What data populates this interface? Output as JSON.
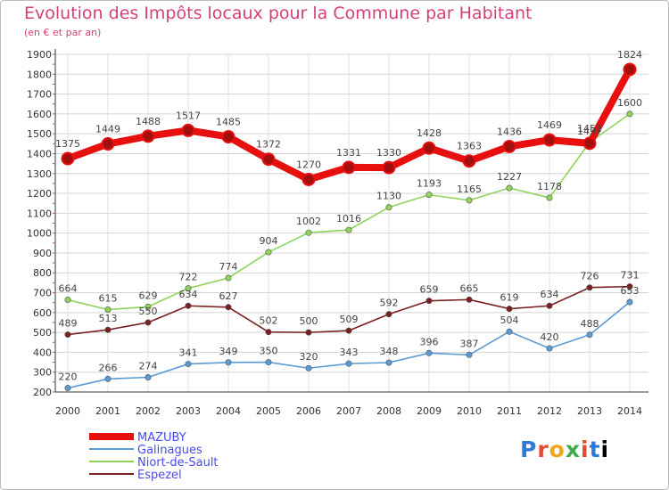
{
  "chart_data": {
    "type": "line",
    "title": "Evolution des Impôts locaux pour la Commune par Habitant",
    "subtitle": "(en € et par an)",
    "logo_text": "Proxiti",
    "x": [
      "2000",
      "2001",
      "2002",
      "2003",
      "2004",
      "2005",
      "2006",
      "2007",
      "2008",
      "2009",
      "2010",
      "2011",
      "2012",
      "2013",
      "2014"
    ],
    "ylim": [
      200,
      1900
    ],
    "yticks": [
      200,
      300,
      400,
      500,
      600,
      700,
      800,
      900,
      1000,
      1100,
      1200,
      1300,
      1400,
      1500,
      1600,
      1700,
      1800,
      1900
    ],
    "grid": true,
    "legend_position": "bottom-left",
    "series": [
      {
        "name": "MAZUBY",
        "color": "#e8100f",
        "values": [
          1375,
          1449,
          1488,
          1517,
          1485,
          1372,
          1270,
          1331,
          1330,
          1428,
          1363,
          1436,
          1469,
          1452,
          1824
        ],
        "labels": [
          "1375",
          "1449",
          "1488",
          "1517",
          "1485",
          "1372",
          "1270",
          "1331",
          "1330",
          "1428",
          "1363",
          "1436",
          "1469",
          "1452",
          "1824"
        ]
      },
      {
        "name": "Galinagues",
        "color": "#5a9bd5",
        "values": [
          220,
          266,
          274,
          341,
          349,
          350,
          320,
          343,
          348,
          396,
          387,
          504,
          420,
          488,
          653
        ],
        "labels": [
          "220",
          "266",
          "274",
          "341",
          "349",
          "350",
          "320",
          "343",
          "348",
          "396",
          "387",
          "504",
          "420",
          "488",
          "653"
        ]
      },
      {
        "name": "Niort-de-Sault",
        "color": "#8fd45a",
        "values": [
          664,
          615,
          629,
          722,
          774,
          904,
          1002,
          1016,
          1130,
          1193,
          1165,
          1227,
          1178,
          1457,
          1600
        ],
        "labels": [
          "664",
          "615",
          "629",
          "722",
          "774",
          "904",
          "1002",
          "1016",
          "1130",
          "1193",
          "1165",
          "1227",
          "1178",
          "1457",
          "1600"
        ]
      },
      {
        "name": "Espezel",
        "color": "#7b2020",
        "values": [
          489,
          513,
          550,
          634,
          627,
          502,
          500,
          509,
          592,
          659,
          665,
          619,
          634,
          726,
          731
        ],
        "labels": [
          "489",
          "513",
          "550",
          "634",
          "627",
          "502",
          "500",
          "509",
          "592",
          "659",
          "665",
          "619",
          "634",
          "726",
          "731"
        ]
      }
    ]
  }
}
